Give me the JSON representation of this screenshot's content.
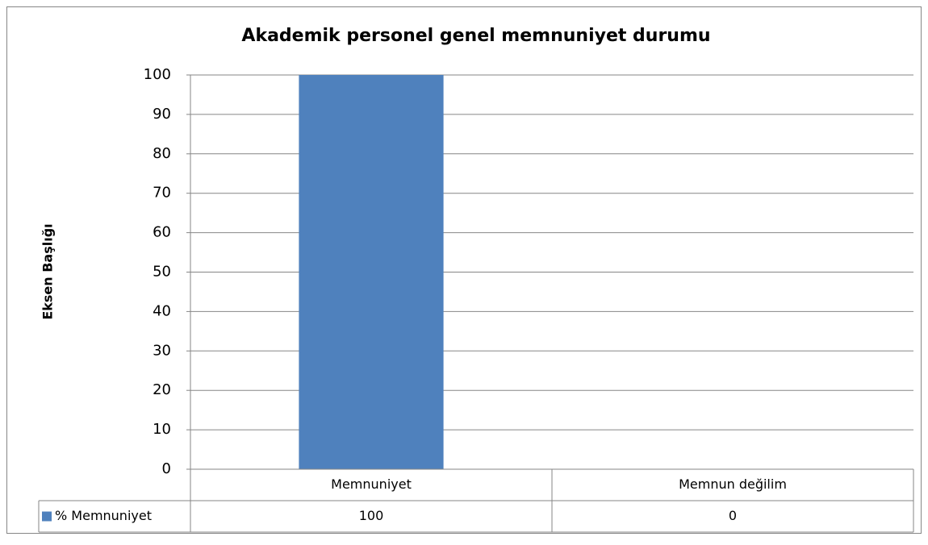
{
  "chart_data": {
    "type": "bar",
    "title": "Akademik personel genel memnuniyet durumu",
    "y_label": "Eksen Başlığı",
    "categories": [
      "Memnuniyet",
      "Memnun değilim"
    ],
    "series": [
      {
        "name": "% Memnuniyet",
        "color": "#4f81bd",
        "values": [
          100,
          0
        ]
      }
    ],
    "ylim": [
      0,
      100
    ],
    "yticks": [
      0,
      10,
      20,
      30,
      40,
      50,
      60,
      70,
      80,
      90,
      100
    ],
    "grid": true,
    "data_table": true
  }
}
